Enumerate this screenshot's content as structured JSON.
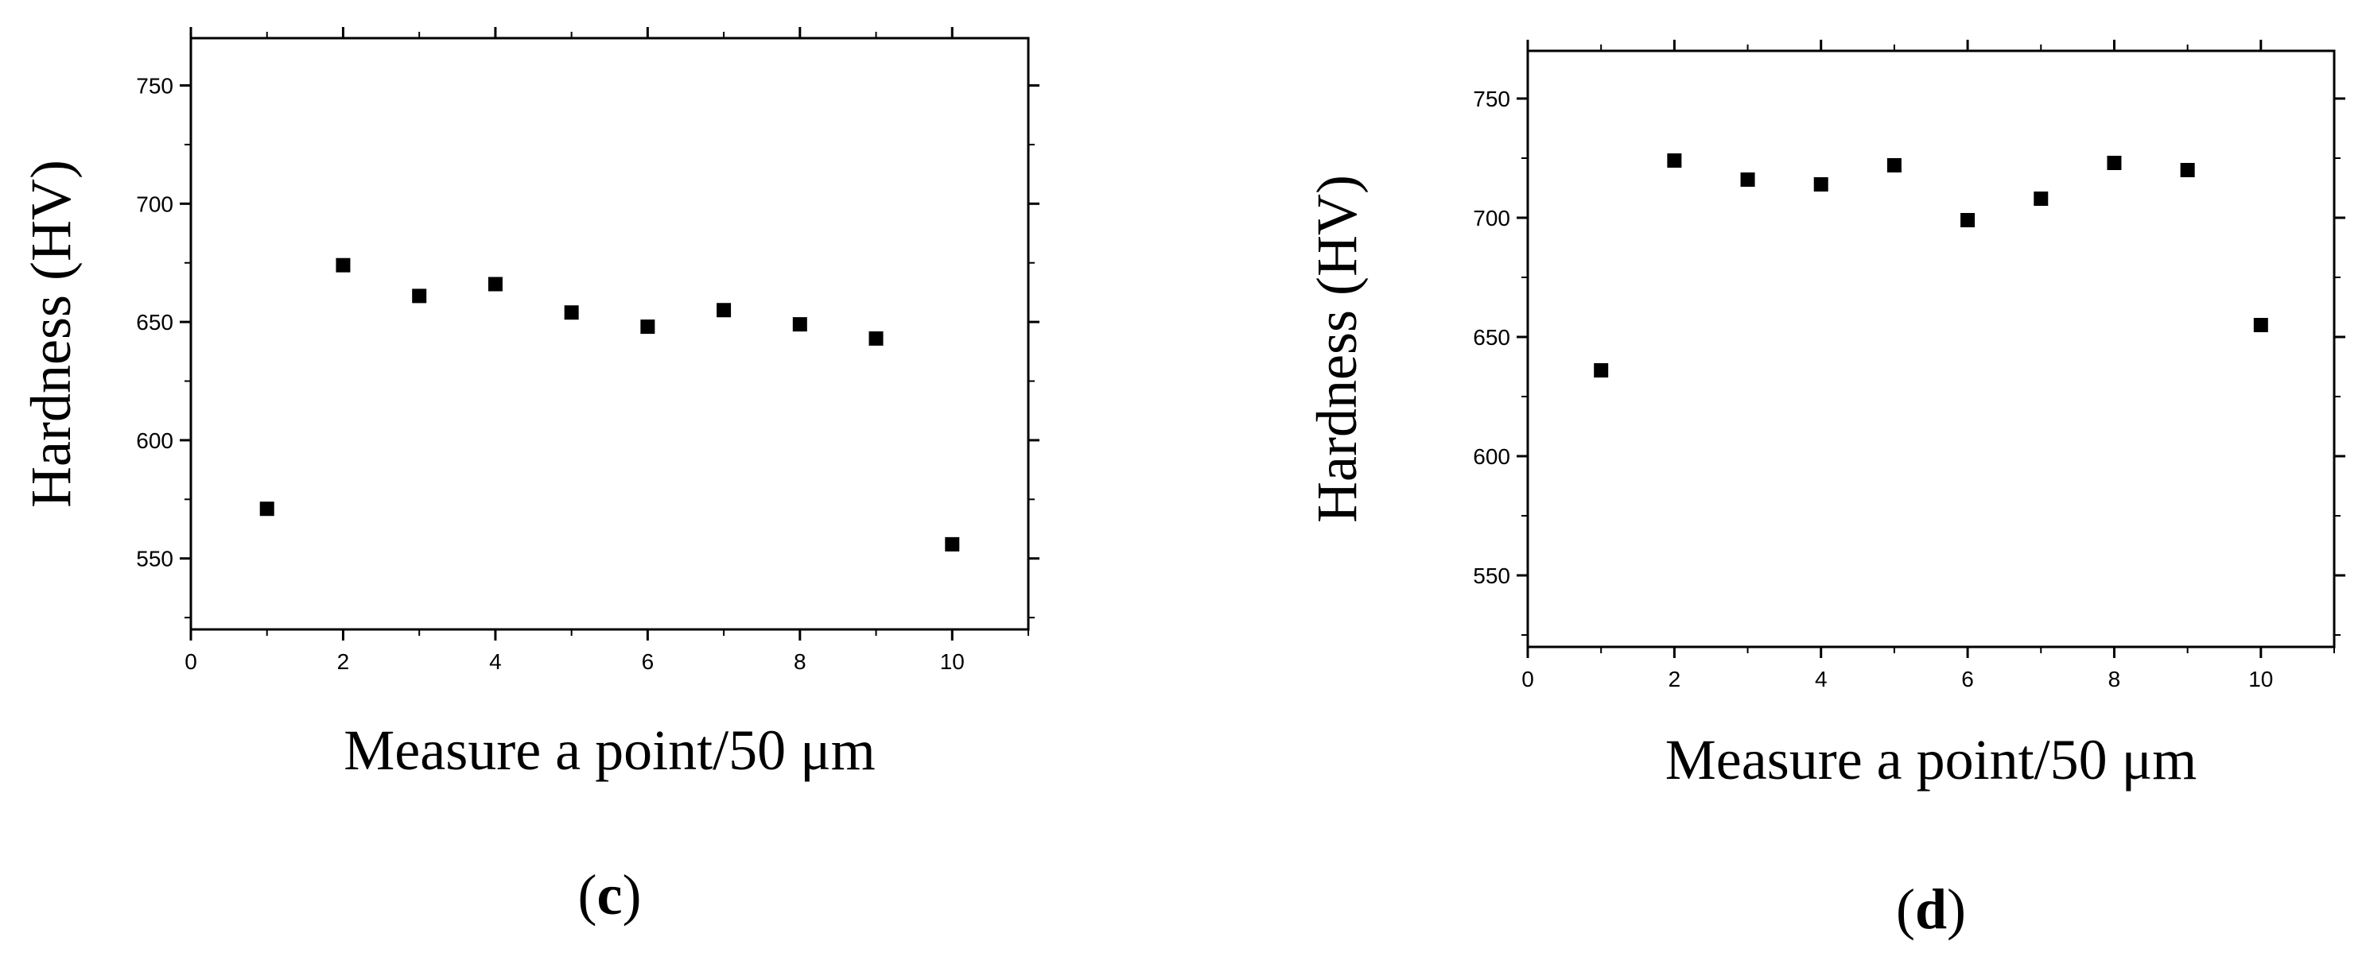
{
  "chart_data": [
    {
      "type": "scatter",
      "panel_label": "c",
      "xlabel": "Measure a point/50 μm",
      "ylabel": "Hardness (HV)",
      "xlim": [
        0,
        11
      ],
      "ylim": [
        520,
        770
      ],
      "x_ticks": [
        0,
        2,
        4,
        6,
        8,
        10
      ],
      "y_ticks": [
        550,
        600,
        650,
        700,
        750
      ],
      "grid": false,
      "series": [
        {
          "x": [
            1,
            2,
            3,
            4,
            5,
            6,
            7,
            8,
            9,
            10
          ],
          "y": [
            571,
            674,
            661,
            666,
            654,
            648,
            655,
            649,
            643,
            556
          ],
          "marker": "square",
          "color": "#000000"
        }
      ]
    },
    {
      "type": "scatter",
      "panel_label": "d",
      "xlabel": "Measure a point/50 μm",
      "ylabel": "Hardness (HV)",
      "xlim": [
        0,
        11
      ],
      "ylim": [
        520,
        770
      ],
      "x_ticks": [
        0,
        2,
        4,
        6,
        8,
        10
      ],
      "y_ticks": [
        550,
        600,
        650,
        700,
        750
      ],
      "grid": false,
      "series": [
        {
          "x": [
            1,
            2,
            3,
            4,
            5,
            6,
            7,
            8,
            9,
            10
          ],
          "y": [
            636,
            724,
            716,
            714,
            722,
            699,
            708,
            723,
            720,
            655
          ],
          "marker": "square",
          "color": "#000000"
        }
      ]
    }
  ]
}
